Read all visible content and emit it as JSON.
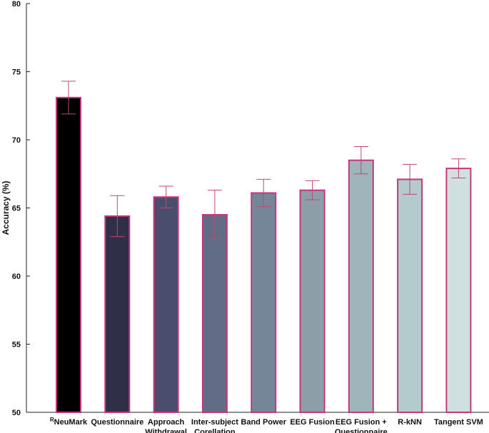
{
  "chart_data": {
    "type": "bar",
    "title": "",
    "xlabel": "",
    "ylabel": "Accuracy (%)",
    "ylim": [
      50,
      80
    ],
    "yticks": [
      50,
      55,
      60,
      65,
      70,
      75,
      80
    ],
    "grid": false,
    "legend": "none",
    "categories": [
      {
        "label": "NeuMark",
        "superscript": "R"
      },
      {
        "label": "Questionnaire"
      },
      {
        "label": "Approach Withdrawal",
        "lines": [
          "Approach",
          "Withdrawal"
        ]
      },
      {
        "label": "Inter-subject Corellation",
        "lines": [
          "Inter-subject",
          "Corellation"
        ]
      },
      {
        "label": "Band Power"
      },
      {
        "label": "EEG Fusion"
      },
      {
        "label": "EEG Fusion + Questionnaire",
        "lines": [
          "EEG Fusion +",
          "Questionnaire"
        ]
      },
      {
        "label": "R-kNN"
      },
      {
        "label": "Tangent SVM"
      }
    ],
    "values": [
      73.1,
      64.4,
      65.8,
      64.5,
      66.1,
      66.3,
      68.5,
      67.1,
      67.9
    ],
    "error": [
      [
        71.9,
        74.3
      ],
      [
        62.9,
        65.9
      ],
      [
        65.0,
        66.6
      ],
      [
        62.7,
        66.3
      ],
      [
        65.1,
        67.1
      ],
      [
        65.6,
        67.0
      ],
      [
        67.5,
        69.5
      ],
      [
        66.0,
        68.2
      ],
      [
        67.2,
        68.6
      ]
    ],
    "bar_colors": [
      "#000000",
      "#2f3047",
      "#4a4e6c",
      "#626c84",
      "#768699",
      "#8c9ea8",
      "#9db5bb",
      "#b3cbcd",
      "#cfe0e1"
    ],
    "edge_color": "#c8357f",
    "errorbar_color": "#c0476f"
  }
}
